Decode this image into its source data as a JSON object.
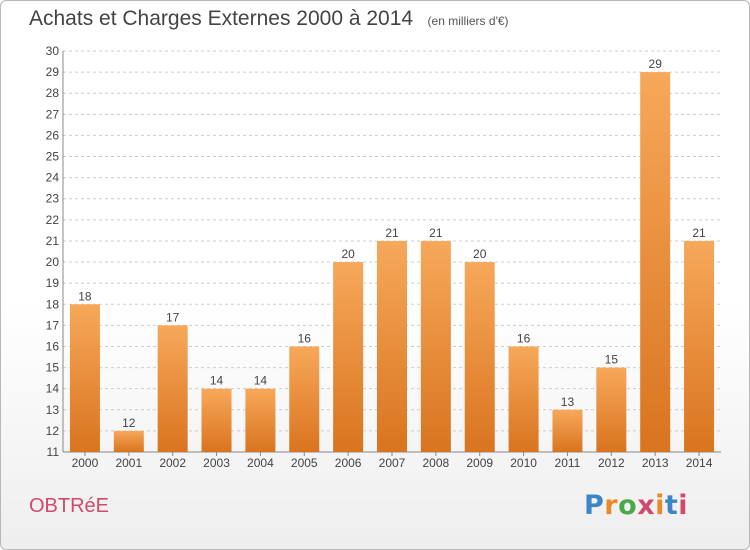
{
  "title": "Achats et Charges Externes 2000 à 2014",
  "unit_note": "(en milliers d'€)",
  "commune": "OBTRéE",
  "logo": {
    "p": "P",
    "r": "r",
    "o": "o",
    "x": "x",
    "i1": "i",
    "t": "t",
    "i2": "i"
  },
  "colors": {
    "bar_top": "#f7a85a",
    "bar_bottom": "#d9741f",
    "grid": "#cccccc",
    "axis": "#888888",
    "text": "#444444"
  },
  "chart_data": {
    "type": "bar",
    "categories": [
      "2000",
      "2001",
      "2002",
      "2003",
      "2004",
      "2005",
      "2006",
      "2007",
      "2008",
      "2009",
      "2010",
      "2011",
      "2012",
      "2013",
      "2014"
    ],
    "values": [
      18,
      12,
      17,
      14,
      14,
      16,
      20,
      21,
      21,
      20,
      16,
      13,
      15,
      29,
      21
    ],
    "yticks": [
      11,
      12,
      13,
      14,
      15,
      16,
      17,
      18,
      19,
      20,
      21,
      22,
      23,
      24,
      25,
      26,
      27,
      28,
      29,
      30
    ],
    "ylim": [
      11,
      30
    ],
    "grid": true
  }
}
